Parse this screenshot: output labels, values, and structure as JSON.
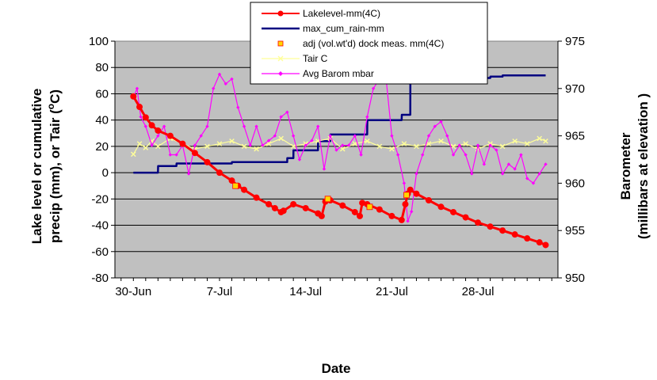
{
  "chart_data": {
    "type": "line",
    "title": "",
    "xlabel": "Date",
    "ylabel_left": [
      "Lake level or cumulative",
      "precip (mm), or Tair (",
      "C)"
    ],
    "ylabel_left_superscript": "o",
    "ylabel_right": [
      "Barometer",
      "(millibars at elevation )"
    ],
    "x_tick_labels": [
      "30-Jun",
      "7-Jul",
      "14-Jul",
      "21-Jul",
      "28-Jul"
    ],
    "x_tick_days": [
      0,
      7,
      14,
      21,
      28
    ],
    "x_range_days": [
      -1.5,
      34.5
    ],
    "ylim_left": [
      -80,
      100
    ],
    "y_ticks_left": [
      "100",
      "80",
      "60",
      "40",
      "20",
      "0",
      "-20",
      "-40",
      "-60",
      "-80"
    ],
    "ylim_right": [
      950,
      975
    ],
    "y_ticks_right": [
      "975",
      "970",
      "965",
      "960",
      "955",
      "950"
    ],
    "grid": "horizontal",
    "plot_background": "#c0c0c0",
    "legend_position": "top-center",
    "series": [
      {
        "name": "Lakelevel-mm(4C)",
        "color": "#ff0000",
        "marker": "circle",
        "axis": "left",
        "x": [
          0,
          0.5,
          1,
          1.5,
          2,
          3,
          4,
          5,
          6,
          7,
          8,
          8.5,
          9,
          10,
          11,
          11.5,
          12,
          12.2,
          13,
          14,
          15,
          15.3,
          15.6,
          16,
          17,
          18,
          18.4,
          18.6,
          19,
          20,
          21,
          21.8,
          22.1,
          22.3,
          22.5,
          23,
          24,
          25,
          26,
          27,
          28,
          29,
          30,
          31,
          32,
          33,
          33.5
        ],
        "y": [
          58,
          50,
          42,
          36,
          32,
          28,
          22,
          15,
          8,
          0,
          -6,
          -10,
          -13,
          -19,
          -24,
          -27,
          -30,
          -29,
          -24,
          -27,
          -31,
          -33,
          -22,
          -21,
          -25,
          -30,
          -33,
          -23,
          -24,
          -28,
          -33,
          -36,
          -24,
          -16,
          -13,
          -16,
          -21,
          -26,
          -30,
          -34,
          -38,
          -41,
          -44,
          -47,
          -50,
          -53,
          -55
        ]
      },
      {
        "name": "max_cum_rain-mm",
        "color": "#000080",
        "marker": "none",
        "axis": "left",
        "x": [
          0,
          2,
          2.01,
          3.5,
          3.51,
          8,
          8.01,
          12.5,
          12.51,
          13,
          13.01,
          15,
          15.01,
          16,
          16.01,
          19,
          19.01,
          21.8,
          21.81,
          22.5,
          22.51,
          26,
          26.01,
          28,
          28.01,
          29,
          29.01,
          30,
          30.01,
          33.5
        ],
        "y": [
          0,
          0,
          5,
          5,
          7,
          7,
          8,
          8,
          11,
          11,
          17,
          17,
          24,
          24,
          29,
          29,
          40,
          40,
          44,
          44,
          68,
          68,
          70,
          70,
          72,
          72,
          73,
          73,
          74,
          74
        ]
      },
      {
        "name": "adj (vol.wt'd) dock meas. mm(4C)",
        "color": "#ffd700",
        "marker": "square",
        "axis": "left",
        "x": [
          8.3,
          15.8,
          19.2,
          22.2
        ],
        "y": [
          -10,
          -20,
          -26,
          -17
        ]
      },
      {
        "name": "Tair C",
        "color": "#ffff99",
        "marker": "x",
        "axis": "left",
        "x": [
          0,
          0.5,
          1,
          1.5,
          2,
          3,
          4,
          5,
          6,
          7,
          8,
          9,
          10,
          11,
          12,
          13,
          14,
          15,
          16,
          17,
          18,
          19,
          20,
          21,
          22,
          23,
          24,
          25,
          26,
          27,
          28,
          29,
          30,
          31,
          32,
          33,
          33.5
        ],
        "y": [
          14,
          22,
          19,
          24,
          20,
          26,
          22,
          18,
          20,
          22,
          24,
          20,
          18,
          22,
          26,
          20,
          22,
          24,
          26,
          18,
          22,
          24,
          20,
          18,
          22,
          20,
          22,
          24,
          20,
          22,
          18,
          22,
          20,
          24,
          22,
          26,
          24
        ]
      },
      {
        "name": "Avg Barom mbar",
        "color": "#ff00ff",
        "marker": "diamond",
        "axis": "right",
        "x": [
          0,
          0.3,
          0.6,
          1,
          1.5,
          2,
          2.5,
          3,
          3.5,
          4,
          4.5,
          5,
          5.5,
          6,
          6.5,
          7,
          7.5,
          8,
          8.5,
          9,
          9.5,
          10,
          10.5,
          11,
          11.5,
          12,
          12.5,
          13,
          13.5,
          14,
          14.5,
          15,
          15.5,
          16,
          16.5,
          17,
          17.5,
          18,
          18.5,
          19,
          19.5,
          20,
          20.5,
          21,
          21.5,
          22,
          22.3,
          22.6,
          23,
          23.5,
          24,
          24.5,
          25,
          25.5,
          26,
          26.5,
          27,
          27.5,
          28,
          28.5,
          29,
          29.5,
          30,
          30.5,
          31,
          31.5,
          32,
          32.5,
          33,
          33.5
        ],
        "y": [
          969,
          970,
          967,
          966,
          964,
          965,
          966,
          963,
          963,
          964,
          961,
          964,
          965,
          966,
          970,
          971.5,
          970.5,
          971,
          968,
          966,
          964,
          966,
          964,
          964.5,
          965,
          967,
          967.5,
          965,
          962.5,
          964,
          964.5,
          966,
          961.5,
          965,
          963.5,
          964,
          964,
          965,
          963,
          967,
          970,
          971,
          971.5,
          965,
          963,
          960,
          956,
          957,
          961,
          963,
          965,
          966,
          966.5,
          965,
          963,
          964,
          963,
          961,
          964,
          962,
          964,
          963.5,
          961,
          962,
          961.5,
          963,
          960.5,
          960,
          961,
          962
        ]
      }
    ]
  }
}
